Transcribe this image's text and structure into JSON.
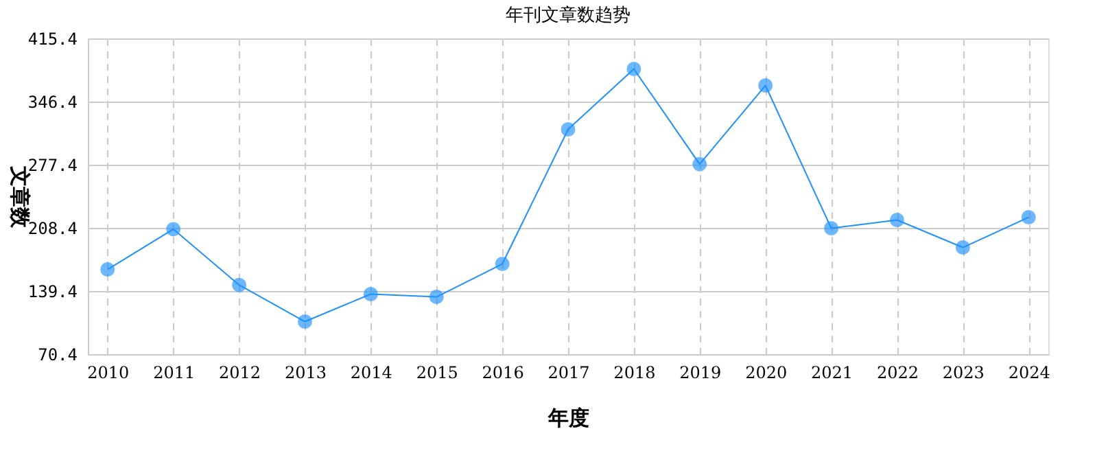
{
  "chart_data": {
    "type": "line",
    "title": "年刊文章数趋势",
    "xlabel": "年度",
    "ylabel": "文章数",
    "categories": [
      "2010",
      "2011",
      "2012",
      "2013",
      "2014",
      "2015",
      "2016",
      "2017",
      "2018",
      "2019",
      "2020",
      "2021",
      "2022",
      "2023",
      "2024"
    ],
    "series": [
      {
        "color": "#1e90ff",
        "values": [
          163,
          207,
          146,
          106,
          136,
          133,
          169,
          316,
          382,
          278,
          364,
          208,
          217,
          187,
          220
        ]
      }
    ],
    "ylim": [
      70.4,
      415.4
    ],
    "yticks": [
      70.4,
      139.4,
      208.4,
      277.4,
      346.4,
      415.4
    ],
    "grid": true,
    "marker": "circle",
    "line_style": "solid"
  }
}
